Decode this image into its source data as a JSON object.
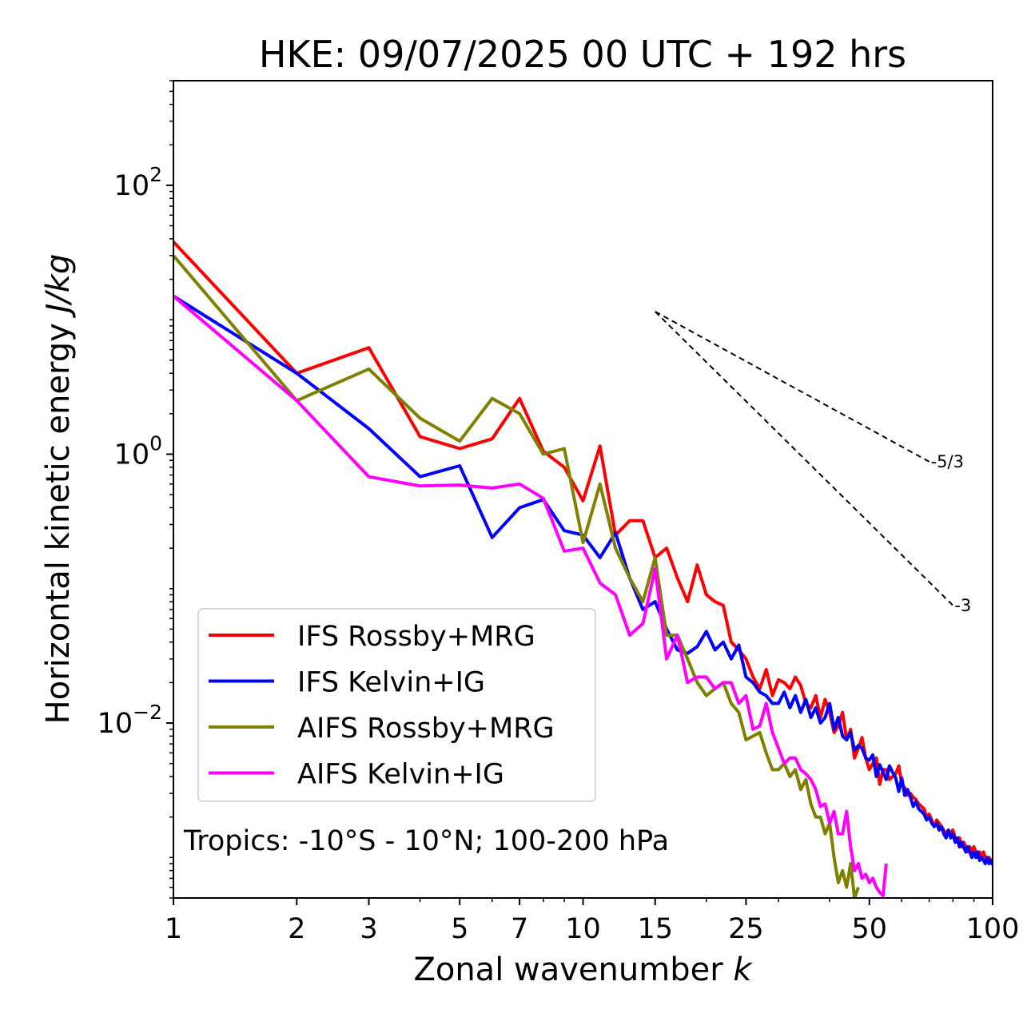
{
  "chart_data": {
    "type": "line",
    "title": "HKE: 09/07/2025 00 UTC + 192 hrs",
    "xlabel": "Zonal wavenumber",
    "xlabel_var": "k",
    "ylabel": "Horizontal kinetic energy",
    "ylabel_unit": "J/kg",
    "xscale": "log",
    "yscale": "log",
    "xlim": [
      1,
      100
    ],
    "ylim": [
      0.0005,
      600
    ],
    "x_ticks": [
      1,
      2,
      3,
      5,
      7,
      10,
      15,
      25,
      50,
      100
    ],
    "x_tick_labels": [
      "1",
      "2",
      "3",
      "5",
      "7",
      "10",
      "15",
      "25",
      "50",
      "100"
    ],
    "y_ticks": [
      {
        "value": 100,
        "base": "10",
        "exp": "2"
      },
      {
        "value": 1,
        "base": "10",
        "exp": "0"
      },
      {
        "value": 0.01,
        "base": "10",
        "exp": "−2"
      }
    ],
    "legend_position": "lower-left",
    "annotation": "Tropics: -10°S - 10°N; 100-200 hPa",
    "reference_lines": [
      {
        "label": "-5/3",
        "x": [
          15,
          70
        ],
        "y": [
          11.5,
          0.88
        ]
      },
      {
        "label": "-3",
        "x": [
          15,
          80
        ],
        "y": [
          11.5,
          0.075
        ]
      }
    ],
    "series": [
      {
        "name": "IFS Rossby+MRG",
        "color": "#ff0000",
        "x": [
          1,
          2,
          3,
          4,
          5,
          6,
          7,
          8,
          9,
          10,
          11,
          12,
          13,
          14,
          15,
          16,
          17,
          18,
          19,
          20,
          21,
          22,
          23,
          24,
          25,
          26,
          27,
          28,
          29,
          30,
          31,
          32,
          33,
          34,
          35,
          36,
          37,
          38,
          39,
          40,
          41,
          42,
          43,
          44,
          45,
          46,
          47,
          48,
          49,
          50,
          51,
          52,
          53,
          54,
          55,
          56,
          57,
          58,
          59,
          60,
          61,
          62,
          63,
          64,
          65,
          66,
          67,
          68,
          69,
          70,
          71,
          72,
          73,
          74,
          75,
          76,
          77,
          78,
          79,
          80,
          81,
          82,
          83,
          84,
          85,
          86,
          87,
          88,
          89,
          90,
          91,
          92,
          93,
          94,
          95,
          96,
          97,
          98,
          99,
          100
        ],
        "y": [
          38,
          4.0,
          6.2,
          1.35,
          1.1,
          1.3,
          2.6,
          1.05,
          0.8,
          0.45,
          1.15,
          0.25,
          0.32,
          0.32,
          0.17,
          0.2,
          0.12,
          0.08,
          0.15,
          0.09,
          0.08,
          0.075,
          0.04,
          0.035,
          0.03,
          0.022,
          0.018,
          0.025,
          0.016,
          0.021,
          0.02,
          0.018,
          0.022,
          0.019,
          0.014,
          0.013,
          0.016,
          0.011,
          0.015,
          0.012,
          0.0085,
          0.0095,
          0.012,
          0.0075,
          0.009,
          0.0055,
          0.0065,
          0.0078,
          0.0055,
          0.0045,
          0.005,
          0.0055,
          0.0035,
          0.0045,
          0.0045,
          0.0038,
          0.004,
          0.0042,
          0.0048,
          0.0035,
          0.0033,
          0.0029,
          0.003,
          0.0028,
          0.0027,
          0.0025,
          0.0024,
          0.0023,
          0.002,
          0.0021,
          0.0019,
          0.0017,
          0.0019,
          0.0018,
          0.0017,
          0.0016,
          0.0015,
          0.0016,
          0.0015,
          0.0016,
          0.0014,
          0.0013,
          0.0014,
          0.0012,
          0.0013,
          0.0012,
          0.0011,
          0.0012,
          0.0011,
          0.0012,
          0.0011,
          0.001,
          0.0011,
          0.001,
          0.0011,
          0.001,
          0.00095,
          0.001,
          0.00095,
          0.0009
        ]
      },
      {
        "name": "IFS Kelvin+IG",
        "color": "#0000ff",
        "x": [
          1,
          2,
          3,
          4,
          5,
          6,
          7,
          8,
          9,
          10,
          11,
          12,
          13,
          14,
          15,
          16,
          17,
          18,
          19,
          20,
          21,
          22,
          23,
          24,
          25,
          26,
          27,
          28,
          29,
          30,
          31,
          32,
          33,
          34,
          35,
          36,
          37,
          38,
          39,
          40,
          41,
          42,
          43,
          44,
          45,
          46,
          47,
          48,
          49,
          50,
          51,
          52,
          53,
          54,
          55,
          56,
          57,
          58,
          59,
          60,
          61,
          62,
          63,
          64,
          65,
          66,
          67,
          68,
          69,
          70,
          71,
          72,
          73,
          74,
          75,
          76,
          77,
          78,
          79,
          80,
          81,
          82,
          83,
          84,
          85,
          86,
          87,
          88,
          89,
          90,
          91,
          92,
          93,
          94,
          95,
          96,
          97,
          98,
          99,
          100
        ],
        "y": [
          15,
          4.0,
          1.55,
          0.68,
          0.82,
          0.24,
          0.4,
          0.46,
          0.27,
          0.25,
          0.17,
          0.26,
          0.12,
          0.07,
          0.08,
          0.05,
          0.035,
          0.033,
          0.037,
          0.048,
          0.035,
          0.04,
          0.03,
          0.038,
          0.022,
          0.02,
          0.017,
          0.016,
          0.014,
          0.014,
          0.017,
          0.013,
          0.016,
          0.012,
          0.015,
          0.011,
          0.013,
          0.01,
          0.011,
          0.014,
          0.009,
          0.011,
          0.008,
          0.0075,
          0.0085,
          0.0063,
          0.0068,
          0.0065,
          0.0055,
          0.0053,
          0.0058,
          0.004,
          0.0049,
          0.0043,
          0.0038,
          0.0048,
          0.0043,
          0.0039,
          0.0031,
          0.0039,
          0.0029,
          0.0032,
          0.0028,
          0.0024,
          0.0026,
          0.0023,
          0.0022,
          0.0021,
          0.0019,
          0.002,
          0.0018,
          0.0017,
          0.0018,
          0.0016,
          0.0017,
          0.0015,
          0.0014,
          0.0016,
          0.0014,
          0.0015,
          0.0013,
          0.0014,
          0.0012,
          0.0013,
          0.0012,
          0.0011,
          0.0012,
          0.0011,
          0.001,
          0.0011,
          0.001,
          0.0011,
          0.00095,
          0.001,
          0.00095,
          0.0009,
          0.001,
          0.0009,
          0.00095,
          0.00088
        ]
      },
      {
        "name": "AIFS Rossby+MRG",
        "color": "#808000",
        "x": [
          1,
          2,
          3,
          4,
          5,
          6,
          7,
          8,
          9,
          10,
          11,
          12,
          13,
          14,
          15,
          16,
          17,
          18,
          19,
          20,
          21,
          22,
          23,
          24,
          25,
          26,
          27,
          28,
          29,
          30,
          31,
          32,
          33,
          34,
          35,
          36,
          37,
          38,
          39,
          40,
          41,
          42,
          43,
          44,
          45,
          46,
          47
        ],
        "y": [
          30,
          2.5,
          4.3,
          1.85,
          1.25,
          2.6,
          2.0,
          1.0,
          1.1,
          0.22,
          0.6,
          0.2,
          0.12,
          0.08,
          0.17,
          0.045,
          0.045,
          0.03,
          0.02,
          0.016,
          0.018,
          0.02,
          0.014,
          0.012,
          0.0075,
          0.008,
          0.0085,
          0.006,
          0.0045,
          0.0045,
          0.005,
          0.004,
          0.0045,
          0.0032,
          0.0038,
          0.0025,
          0.002,
          0.002,
          0.0015,
          0.0018,
          0.001,
          0.00065,
          0.0008,
          0.0006,
          0.0009,
          0.0005,
          0.0006
        ]
      },
      {
        "name": "AIFS Kelvin+IG",
        "color": "#ff00ff",
        "x": [
          1,
          2,
          3,
          4,
          5,
          6,
          7,
          8,
          9,
          10,
          11,
          12,
          13,
          14,
          15,
          16,
          17,
          18,
          19,
          20,
          21,
          22,
          23,
          24,
          25,
          26,
          27,
          28,
          29,
          30,
          31,
          32,
          33,
          34,
          35,
          36,
          37,
          38,
          39,
          40,
          41,
          42,
          43,
          44,
          45,
          46,
          47,
          48,
          49,
          50,
          51,
          52,
          53,
          54,
          55
        ],
        "y": [
          15,
          2.5,
          0.68,
          0.58,
          0.59,
          0.56,
          0.6,
          0.47,
          0.19,
          0.2,
          0.11,
          0.09,
          0.045,
          0.055,
          0.14,
          0.03,
          0.045,
          0.02,
          0.022,
          0.022,
          0.018,
          0.02,
          0.02,
          0.014,
          0.016,
          0.009,
          0.0095,
          0.014,
          0.0085,
          0.0065,
          0.005,
          0.0055,
          0.0055,
          0.0045,
          0.0042,
          0.0038,
          0.0032,
          0.0024,
          0.0025,
          0.0018,
          0.0022,
          0.0015,
          0.0015,
          0.0022,
          0.0012,
          0.0008,
          0.0009,
          0.0007,
          0.00075,
          0.00065,
          0.0007,
          0.0006,
          0.00055,
          0.00052,
          0.0009
        ]
      }
    ]
  }
}
